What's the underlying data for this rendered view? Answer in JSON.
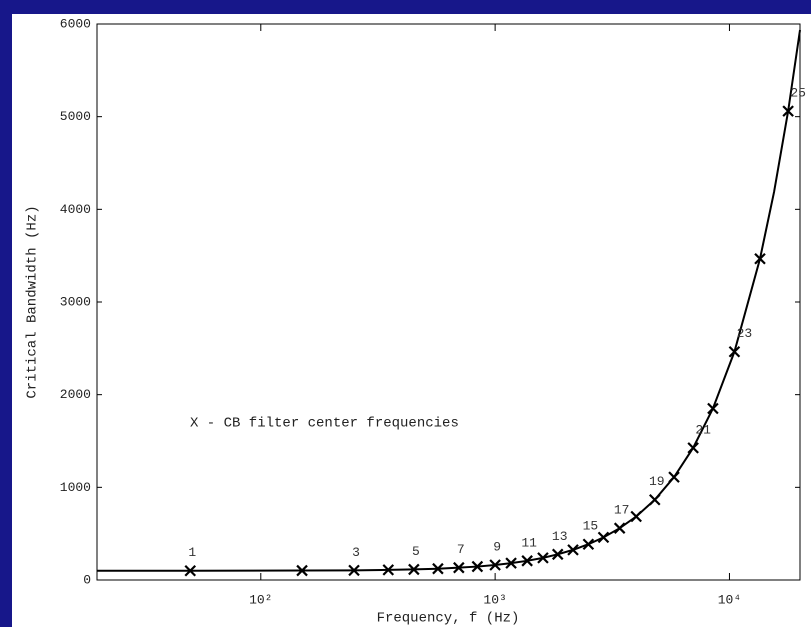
{
  "chart_data": {
    "type": "line",
    "xlabel": "Frequency, f (Hz)",
    "ylabel": "Critical Bandwidth (Hz)",
    "annotation": "X - CB filter center frequencies",
    "xscale": "log",
    "xlim": [
      20,
      20000
    ],
    "ylim": [
      0,
      6000
    ],
    "xticks": [
      {
        "value": 100,
        "label": "10²"
      },
      {
        "value": 1000,
        "label": "10³"
      },
      {
        "value": 10000,
        "label": "10⁴"
      }
    ],
    "yticks": [
      0,
      1000,
      2000,
      3000,
      4000,
      5000,
      6000
    ],
    "series": [
      {
        "color": "#000000",
        "marker": "none",
        "x": [
          20,
          50,
          150,
          250,
          350,
          450,
          570,
          700,
          840,
          1000,
          1170,
          1370,
          1600,
          1850,
          2150,
          2500,
          2900,
          3400,
          4000,
          4800,
          5800,
          7000,
          8500,
          10500,
          13500,
          15500,
          17800,
          20000
        ],
        "values": [
          100,
          100,
          102,
          104,
          109,
          114,
          122,
          133,
          145,
          162,
          182,
          207,
          239,
          277,
          325,
          386,
          460,
          559,
          685,
          866,
          1110,
          1426,
          1851,
          2463,
          3467,
          4188,
          5060,
          5935
        ]
      },
      {
        "color": "#000000",
        "marker": "x",
        "x": [
          50,
          150,
          250,
          350,
          450,
          570,
          700,
          840,
          1000,
          1170,
          1370,
          1600,
          1850,
          2150,
          2500,
          2900,
          3400,
          4000,
          4800,
          5800,
          7000,
          8500,
          10500,
          13500,
          17800
        ],
        "values": [
          100,
          102,
          104,
          109,
          114,
          122,
          133,
          145,
          162,
          182,
          207,
          239,
          277,
          325,
          386,
          460,
          559,
          685,
          866,
          1110,
          1426,
          1851,
          2463,
          3467,
          5060
        ],
        "point_labels": [
          "1",
          null,
          "3",
          null,
          "5",
          null,
          "7",
          null,
          "9",
          null,
          "11",
          null,
          "13",
          null,
          "15",
          null,
          "17",
          null,
          "19",
          null,
          "21",
          null,
          "23",
          null,
          "25"
        ]
      }
    ]
  }
}
